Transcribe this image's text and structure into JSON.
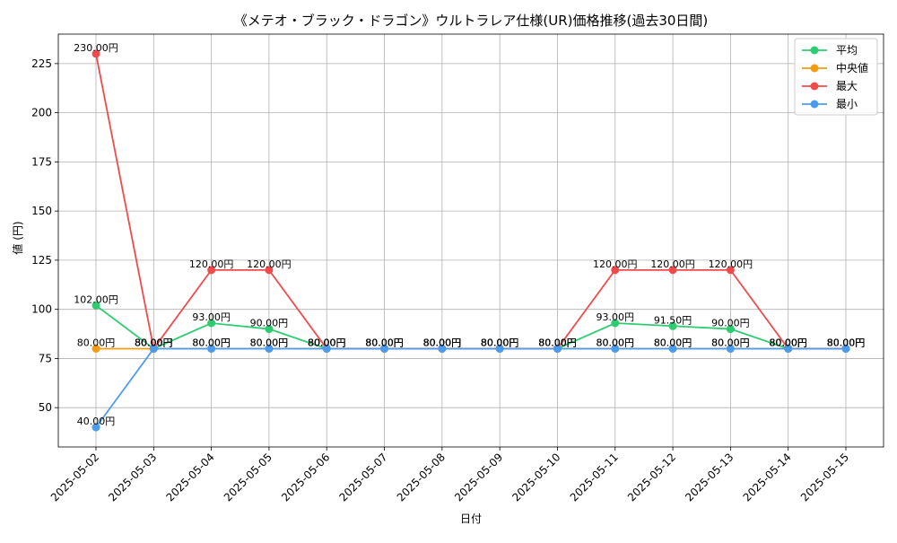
{
  "chart_data": {
    "type": "line",
    "title": "《メテオ・ブラック・ドラゴン》ウルトラレア仕様(UR)価格推移(過去30日間)",
    "xlabel": "日付",
    "ylabel": "値 (円)",
    "ylim": [
      30,
      240
    ],
    "yticks": [
      50,
      75,
      100,
      125,
      150,
      175,
      200,
      225
    ],
    "grid": true,
    "legend_position": "top-right",
    "label_suffix": "円",
    "categories": [
      "2025-05-02",
      "2025-05-03",
      "2025-05-04",
      "2025-05-05",
      "2025-05-06",
      "2025-05-07",
      "2025-05-08",
      "2025-05-09",
      "2025-05-10",
      "2025-05-11",
      "2025-05-12",
      "2025-05-13",
      "2025-05-14",
      "2025-05-15"
    ],
    "series": [
      {
        "key": "avg",
        "name": "平均",
        "color": "#2ecc71",
        "values": [
          102,
          80,
          93,
          90,
          80,
          80,
          80,
          80,
          80,
          93,
          91.5,
          90,
          80,
          80
        ]
      },
      {
        "key": "median",
        "name": "中央値",
        "color": "#f39c12",
        "values": [
          80,
          80,
          80,
          80,
          80,
          80,
          80,
          80,
          80,
          80,
          80,
          80,
          80,
          80
        ]
      },
      {
        "key": "max",
        "name": "最大",
        "color": "#ef4b4b",
        "values": [
          230,
          80,
          120,
          120,
          80,
          80,
          80,
          80,
          80,
          120,
          120,
          120,
          80,
          80
        ]
      },
      {
        "key": "min",
        "name": "最小",
        "color": "#4c9bef",
        "values": [
          40,
          80,
          80,
          80,
          80,
          80,
          80,
          80,
          80,
          80,
          80,
          80,
          80,
          80
        ]
      }
    ]
  }
}
